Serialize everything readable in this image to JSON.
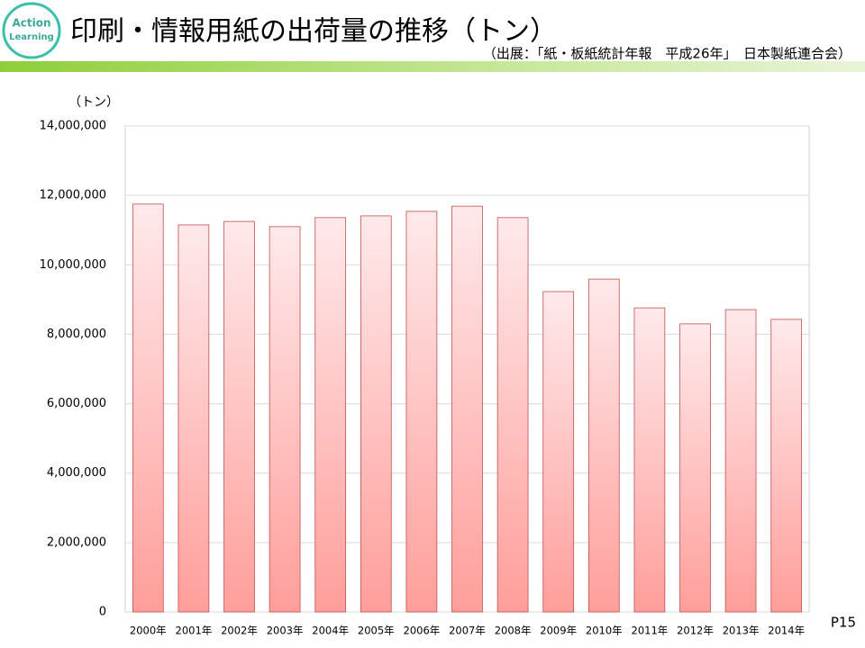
{
  "logo": [
    "Action",
    "Learning"
  ],
  "page": "P15",
  "chart_data": {
    "type": "bar",
    "title": "印刷・情報用紙の出荷量の推移（トン）",
    "subtitle": "（出展：「紙・板紙統計年報　平成26年」　日本製紙連合会）",
    "y_label": "（トン）",
    "categories": [
      "2000年",
      "2001年",
      "2002年",
      "2003年",
      "2004年",
      "2005年",
      "2006年",
      "2007年",
      "2008年",
      "2009年",
      "2010年",
      "2011年",
      "2012年",
      "2013年",
      "2014年"
    ],
    "values": [
      11750000,
      11150000,
      11250000,
      11100000,
      11360000,
      11410000,
      11540000,
      11690000,
      11360000,
      9230000,
      9590000,
      8760000,
      8300000,
      8710000,
      8430000
    ],
    "color": "#ff9e9a",
    "ylim": [
      0,
      14000000
    ],
    "yticks": [
      0,
      {
        "value": 2000000,
        "label": "2,000,000"
      },
      {
        "value": 4000000,
        "label": "4,000,000"
      },
      {
        "value": 6000000,
        "label": "6,000,000"
      },
      {
        "value": 8000000,
        "label": "8,000,000"
      },
      {
        "value": 10000000,
        "label": "10,000,000"
      },
      {
        "value": 12000000,
        "label": "12,000,000"
      },
      {
        "value": 14000000,
        "label": "14,000,000"
      }
    ],
    "grid": true
  }
}
